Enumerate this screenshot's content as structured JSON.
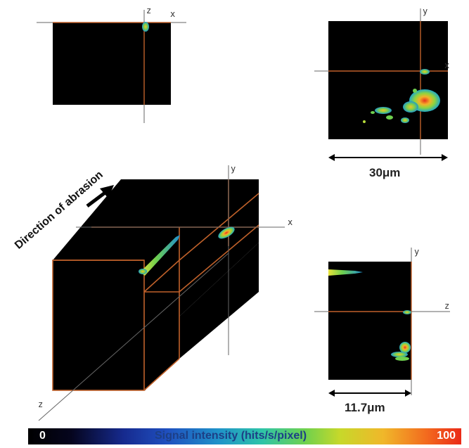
{
  "axes": {
    "top_left": {
      "z": "z",
      "x": "x"
    },
    "top_right": {
      "y": "y",
      "x": "x"
    },
    "cube": {
      "y": "y",
      "x": "x",
      "z": "z"
    },
    "bottom_right": {
      "y": "y",
      "z": "z"
    }
  },
  "scale_bars": {
    "xy": "30μm",
    "yz": "11.7μm"
  },
  "direction_label": "Direction of abrasion",
  "colorbar": {
    "min": "0",
    "max": "100",
    "title": "Signal intensity (hits/s/pixel)"
  },
  "colors": {
    "crosshair": "#c0612a",
    "axis_line": "#666666",
    "background": "#000000",
    "colorbar_low": "#000000",
    "colorbar_high": "#ea2a18"
  }
}
